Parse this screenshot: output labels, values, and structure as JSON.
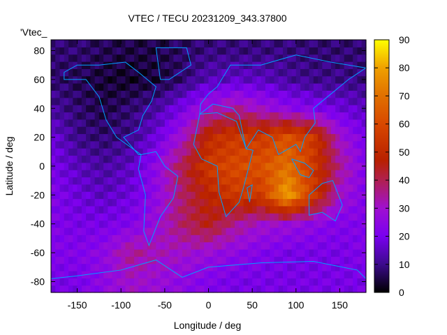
{
  "chart_data": {
    "type": "heatmap",
    "title": "VTEC / TECU 20231209_343.37800",
    "xlabel": "Longitude / deg",
    "ylabel": "Latitude / deg",
    "legend_key": "'Vtec_",
    "xlim": [
      -180,
      180
    ],
    "ylim": [
      -87.5,
      87.5
    ],
    "xticks": [
      -150,
      -100,
      -50,
      0,
      50,
      100,
      150
    ],
    "yticks": [
      -80,
      -60,
      -40,
      -20,
      0,
      20,
      40,
      60,
      80
    ],
    "colorbar": {
      "range": [
        0,
        90
      ],
      "ticks": [
        0,
        10,
        20,
        30,
        40,
        50,
        60,
        70,
        80,
        90
      ]
    },
    "grid_lon": [
      -180,
      -150,
      -120,
      -90,
      -60,
      -30,
      0,
      30,
      60,
      90,
      120,
      150,
      180
    ],
    "grid_lat": [
      80,
      60,
      40,
      20,
      0,
      -20,
      -40,
      -60,
      -80
    ],
    "values": [
      [
        8,
        8,
        6,
        5,
        5,
        7,
        9,
        9,
        9,
        9,
        8,
        8,
        8
      ],
      [
        8,
        6,
        4,
        3,
        4,
        8,
        14,
        16,
        15,
        12,
        10,
        10,
        9
      ],
      [
        12,
        8,
        5,
        8,
        12,
        20,
        30,
        35,
        30,
        25,
        22,
        18,
        15
      ],
      [
        18,
        10,
        8,
        10,
        18,
        30,
        50,
        55,
        55,
        62,
        55,
        30,
        20
      ],
      [
        20,
        15,
        12,
        15,
        25,
        40,
        55,
        60,
        62,
        70,
        55,
        35,
        22
      ],
      [
        22,
        18,
        15,
        18,
        25,
        38,
        48,
        55,
        55,
        80,
        55,
        30,
        22
      ],
      [
        22,
        20,
        20,
        22,
        28,
        38,
        45,
        35,
        30,
        28,
        25,
        22,
        22
      ],
      [
        22,
        22,
        25,
        35,
        32,
        30,
        28,
        25,
        22,
        20,
        20,
        20,
        22
      ],
      [
        20,
        20,
        25,
        30,
        28,
        25,
        22,
        20,
        20,
        20,
        20,
        20,
        20
      ]
    ],
    "colors": {
      "coastline": "#00a0ff"
    }
  }
}
